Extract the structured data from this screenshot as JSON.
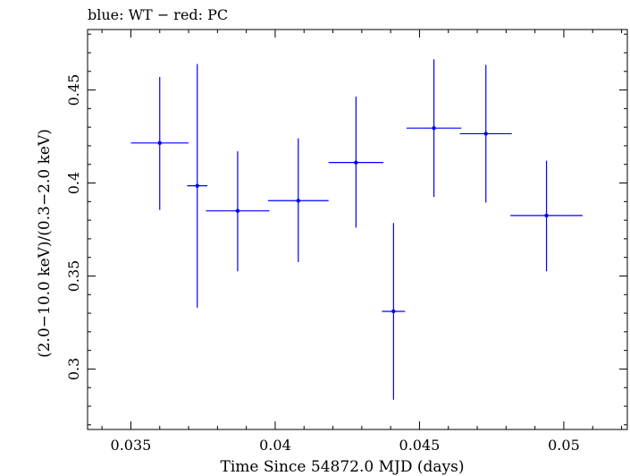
{
  "chart_data": {
    "type": "scatter",
    "title": "blue: WT − red: PC",
    "xlabel": "Time Since 54872.0 MJD (days)",
    "ylabel": "(2.0−10.0 keV)/(0.3−2.0 keV)",
    "xlim": [
      0.0335,
      0.0522
    ],
    "ylim": [
      0.2675,
      0.4825
    ],
    "xticks": [
      "0.035",
      "0.04",
      "0.045",
      "0.05"
    ],
    "yticks": [
      "0.3",
      "0.35",
      "0.4",
      "0.45"
    ],
    "grid": false,
    "series": [
      {
        "color": "#0000ff",
        "points": [
          {
            "x": 0.036,
            "y": 0.4215,
            "xerr": 0.001,
            "yerr_lo": 0.036,
            "yerr_hi": 0.0355
          },
          {
            "x": 0.0373,
            "y": 0.3985,
            "xerr": 0.00035,
            "yerr_lo": 0.0655,
            "yerr_hi": 0.0655
          },
          {
            "x": 0.0387,
            "y": 0.385,
            "xerr": 0.0011,
            "yerr_lo": 0.0325,
            "yerr_hi": 0.032
          },
          {
            "x": 0.0408,
            "y": 0.3905,
            "xerr": 0.00105,
            "yerr_lo": 0.033,
            "yerr_hi": 0.0335
          },
          {
            "x": 0.0428,
            "y": 0.411,
            "xerr": 0.00095,
            "yerr_lo": 0.035,
            "yerr_hi": 0.0355
          },
          {
            "x": 0.0441,
            "y": 0.331,
            "xerr": 0.0004,
            "yerr_lo": 0.0475,
            "yerr_hi": 0.0475
          },
          {
            "x": 0.0455,
            "y": 0.4295,
            "xerr": 0.00095,
            "yerr_lo": 0.037,
            "yerr_hi": 0.037
          },
          {
            "x": 0.0473,
            "y": 0.4265,
            "xerr": 0.0009,
            "yerr_lo": 0.037,
            "yerr_hi": 0.037
          },
          {
            "x": 0.0494,
            "y": 0.3825,
            "xerr": 0.00125,
            "yerr_lo": 0.03,
            "yerr_hi": 0.0295
          }
        ]
      }
    ]
  }
}
